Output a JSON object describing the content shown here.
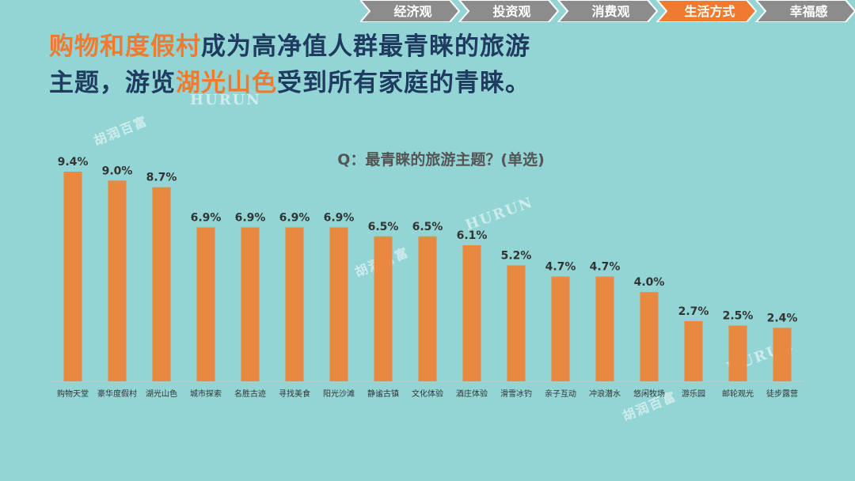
{
  "nav": {
    "tabs": [
      {
        "label": "经济观",
        "active": false
      },
      {
        "label": "投资观",
        "active": false
      },
      {
        "label": "消费观",
        "active": false
      },
      {
        "label": "生活方式",
        "active": true
      },
      {
        "label": "幸福感",
        "active": false
      }
    ]
  },
  "headline": {
    "line1_highlight": "购物和度假村",
    "line1_rest": "成为高净值人群最青睐的旅游",
    "line2_start": "主题，游览",
    "line2_highlight": "湖光山色",
    "line2_end": "受到所有家庭的青睐。"
  },
  "watermark": {
    "brand_en": "HURUN",
    "brand_cn": "胡润百富"
  },
  "colors": {
    "background": "#93d5d5",
    "bar": "#e98840",
    "accent": "#ee7b2f",
    "title": "#1f3b60"
  },
  "chart_data": {
    "type": "bar",
    "title": "Q：最青睐的旅游主题？(单选)",
    "categories": [
      "购物天堂",
      "豪华度假村",
      "湖光山色",
      "城市探索",
      "名胜古迹",
      "寻找美食",
      "阳光沙滩",
      "静谧古镇",
      "文化体验",
      "酒庄体验",
      "滑雪冰钓",
      "亲子互动",
      "冲浪潜水",
      "悠闲牧场",
      "游乐园",
      "邮轮观光",
      "徒步露营"
    ],
    "values": [
      9.4,
      9.0,
      8.7,
      6.9,
      6.9,
      6.9,
      6.9,
      6.5,
      6.5,
      6.1,
      5.2,
      4.7,
      4.7,
      4.0,
      2.7,
      2.5,
      2.4
    ],
    "value_labels": [
      "9.4%",
      "9.0%",
      "8.7%",
      "6.9%",
      "6.9%",
      "6.9%",
      "6.9%",
      "6.5%",
      "6.5%",
      "6.1%",
      "5.2%",
      "4.7%",
      "4.7%",
      "4.0%",
      "2.7%",
      "2.5%",
      "2.4%"
    ],
    "ylim": [
      0,
      10
    ],
    "grid": false,
    "legend": "none"
  }
}
